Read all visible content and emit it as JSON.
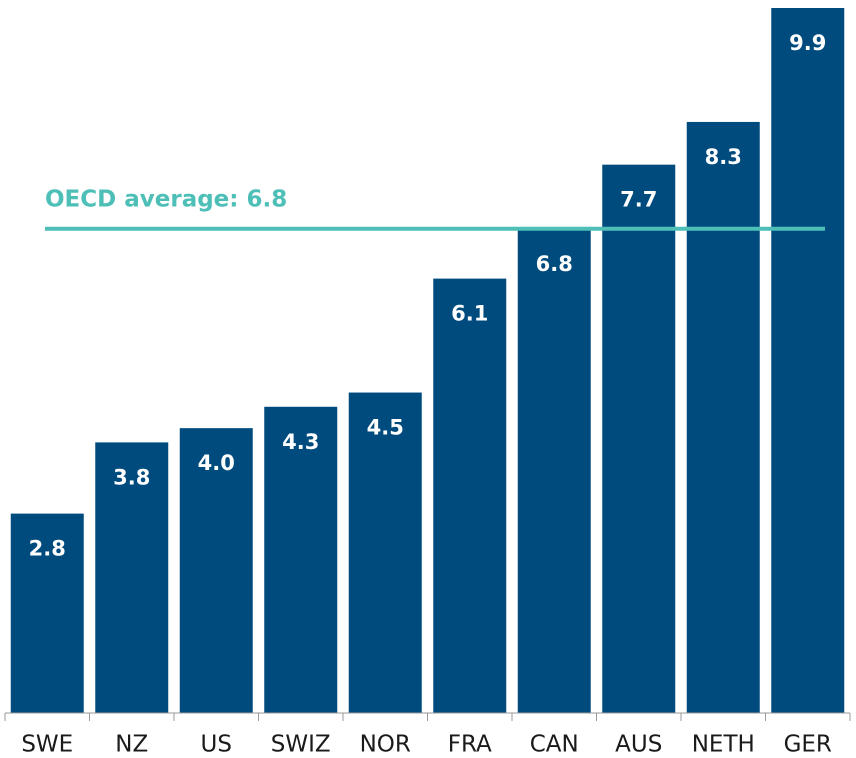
{
  "chart_data": {
    "type": "bar",
    "categories": [
      "SWE",
      "NZ",
      "US",
      "SWIZ",
      "NOR",
      "FRA",
      "CAN",
      "AUS",
      "NETH",
      "GER"
    ],
    "values": [
      2.8,
      3.8,
      4.0,
      4.3,
      4.5,
      6.1,
      6.8,
      7.7,
      8.3,
      9.9
    ],
    "value_labels": [
      "2.8",
      "3.8",
      "4.0",
      "4.3",
      "4.5",
      "6.1",
      "6.8",
      "7.7",
      "8.3",
      "9.9"
    ],
    "color": "#004b7e",
    "ylim": [
      0,
      9.9
    ],
    "reference_line": {
      "label": "OECD average: 6.8",
      "value": 6.8,
      "color": "#4dbfb7"
    }
  }
}
